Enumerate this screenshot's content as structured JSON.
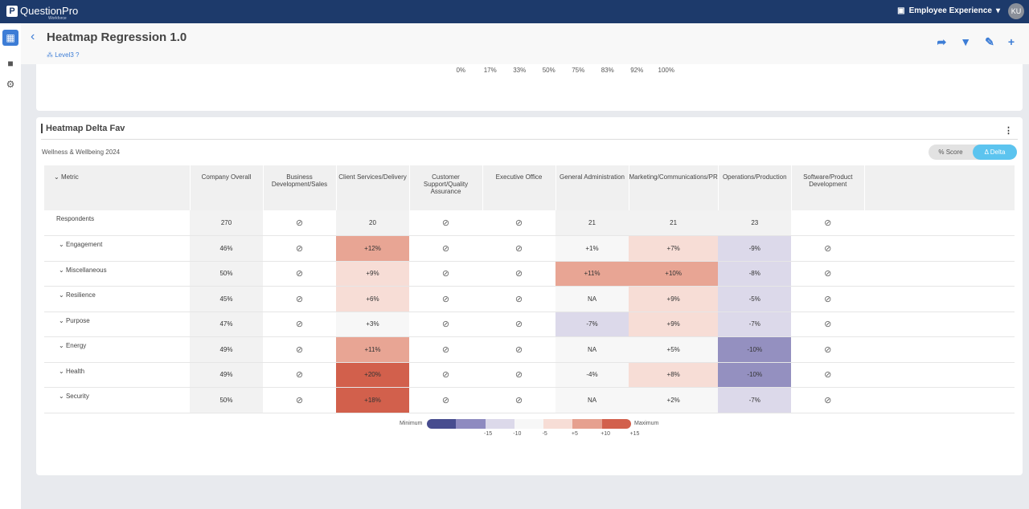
{
  "topbar": {
    "brand": "QuestionPro",
    "brand_sub": "Workforce",
    "product": "Employee Experience",
    "avatar": "KU"
  },
  "header": {
    "title": "Heatmap Regression 1.0",
    "level": "Level3"
  },
  "top_card": {
    "ticks": [
      "0%",
      "17%",
      "33%",
      "50%",
      "75%",
      "83%",
      "92%",
      "100%"
    ]
  },
  "card": {
    "title": "Heatmap Delta Fav",
    "subtitle": "Wellness & Wellbeing 2024",
    "toggle": {
      "score": "% Score",
      "delta": "Δ Delta",
      "selected": "delta"
    }
  },
  "table": {
    "columns": [
      "Metric",
      "Company Overall",
      "Business Development/Sales",
      "Client Services/Delivery",
      "Customer Support/Quality Assurance",
      "Executive Office",
      "General Administration",
      "Marketing/Communications/PR",
      "Operations/Production",
      "Software/Product Development"
    ],
    "rows": [
      {
        "label": "Respondents",
        "cells": [
          "270",
          "hidden",
          "20",
          "hidden",
          "hidden",
          "21",
          "21",
          "23",
          "hidden"
        ]
      },
      {
        "label": "Engagement",
        "cells": [
          "46%",
          "hidden",
          "+12%",
          "hidden",
          "hidden",
          "+1%",
          "+7%",
          "-9%",
          "hidden"
        ]
      },
      {
        "label": "Miscellaneous",
        "cells": [
          "50%",
          "hidden",
          "+9%",
          "hidden",
          "hidden",
          "+11%",
          "+10%",
          "-8%",
          "hidden"
        ]
      },
      {
        "label": "Resilience",
        "cells": [
          "45%",
          "hidden",
          "+6%",
          "hidden",
          "hidden",
          "NA",
          "+9%",
          "-5%",
          "hidden"
        ]
      },
      {
        "label": "Purpose",
        "cells": [
          "47%",
          "hidden",
          "+3%",
          "hidden",
          "hidden",
          "-7%",
          "+9%",
          "-7%",
          "hidden"
        ]
      },
      {
        "label": "Energy",
        "cells": [
          "49%",
          "hidden",
          "+11%",
          "hidden",
          "hidden",
          "NA",
          "+5%",
          "-10%",
          "hidden"
        ]
      },
      {
        "label": "Health",
        "cells": [
          "49%",
          "hidden",
          "+20%",
          "hidden",
          "hidden",
          "-4%",
          "+8%",
          "-10%",
          "hidden"
        ]
      },
      {
        "label": "Security",
        "cells": [
          "50%",
          "hidden",
          "+18%",
          "hidden",
          "hidden",
          "NA",
          "+2%",
          "-7%",
          "hidden"
        ]
      }
    ]
  },
  "legend": {
    "min": "Minimum",
    "max": "Maximum",
    "labels": [
      "-15",
      "-10",
      "-5",
      "+5",
      "+10",
      "+15"
    ],
    "colors": [
      "#474c8f",
      "#8e8ac0",
      "#dcd9ea",
      "#f7f7f7",
      "#f7ddd6",
      "#e6a08f",
      "#d2604c"
    ]
  }
}
